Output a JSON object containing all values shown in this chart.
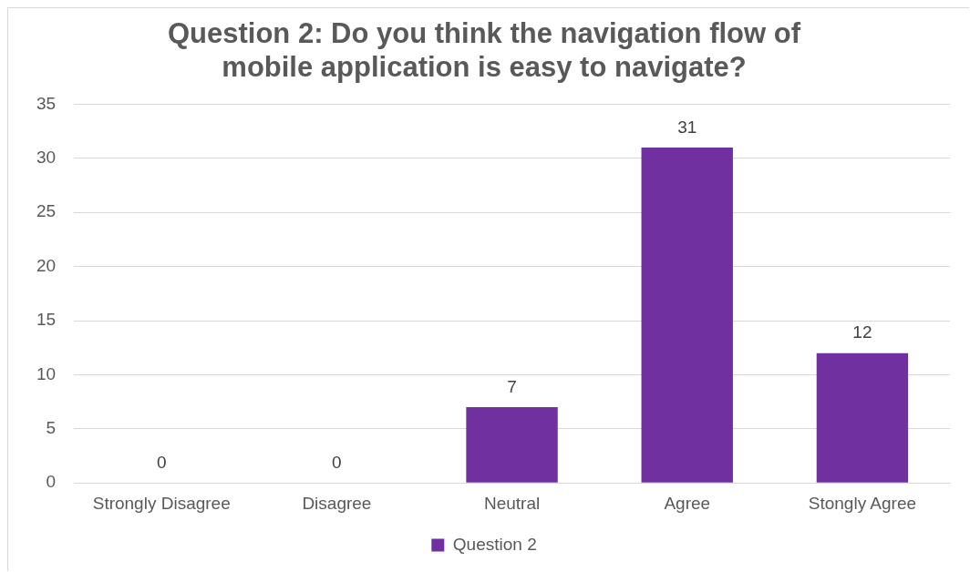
{
  "chart_data": {
    "type": "bar",
    "title": "Question 2: Do you think the navigation flow of mobile application is easy to navigate?",
    "categories": [
      "Strongly Disagree",
      "Disagree",
      "Neutral",
      "Agree",
      "Stongly Agree"
    ],
    "series": [
      {
        "name": "Question 2",
        "color": "#7030a0",
        "values": [
          0,
          0,
          7,
          31,
          12
        ]
      }
    ],
    "ylim": [
      0,
      35
    ],
    "yticks": [
      0,
      5,
      10,
      15,
      20,
      25,
      30,
      35
    ],
    "grid": "y",
    "legend": "bottom",
    "data_labels": true
  }
}
